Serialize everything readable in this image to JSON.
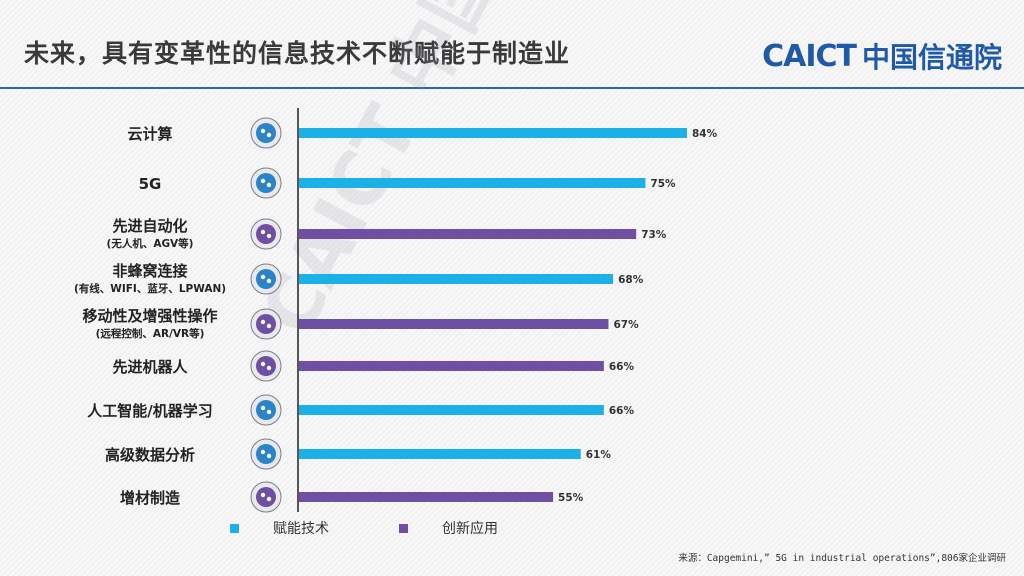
{
  "header": {
    "title": "未来，具有变革性的信息技术不断赋能于制造业",
    "logo_en": "CAICT",
    "logo_cn": "中国信通院"
  },
  "watermark": "CAICT 中国信通院",
  "colors": {
    "enabling": "#1cb1e6",
    "innovation": "#6e4fa3",
    "rule": "#2f66b0",
    "brand": "#1f5aa8"
  },
  "chart_data": {
    "type": "bar",
    "orientation": "horizontal",
    "categories": [
      {
        "label": "云计算",
        "sub": "",
        "icon": "cloud-computing-icon",
        "series": "赋能技术"
      },
      {
        "label": "5G",
        "sub": "",
        "icon": "antenna-5g-icon",
        "series": "赋能技术"
      },
      {
        "label": "先进自动化",
        "sub": "(无人机、AGV等)",
        "icon": "gears-icon",
        "series": "创新应用"
      },
      {
        "label": "非蜂窝连接",
        "sub": "(有线、WIFI、蓝牙、LPWAN)",
        "icon": "network-nodes-icon",
        "series": "赋能技术"
      },
      {
        "label": "移动性及增强性操作",
        "sub": "(远程控制、AR/VR等)",
        "icon": "vr-headset-icon",
        "series": "创新应用"
      },
      {
        "label": "先进机器人",
        "sub": "",
        "icon": "robot-icon",
        "series": "创新应用"
      },
      {
        "label": "人工智能/机器学习",
        "sub": "",
        "icon": "ai-brain-icon",
        "series": "赋能技术"
      },
      {
        "label": "高级数据分析",
        "sub": "",
        "icon": "data-analysis-icon",
        "series": "赋能技术"
      },
      {
        "label": "增材制造",
        "sub": "",
        "icon": "3d-printer-icon",
        "series": "创新应用"
      }
    ],
    "values": [
      84,
      75,
      73,
      68,
      67,
      66,
      66,
      61,
      55
    ],
    "value_labels": [
      "84%",
      "75%",
      "73%",
      "68%",
      "67%",
      "66%",
      "66%",
      "61%",
      "55%"
    ],
    "series": [
      {
        "name": "赋能技术",
        "color": "#1cb1e6"
      },
      {
        "name": "创新应用",
        "color": "#6e4fa3"
      }
    ],
    "xlim": [
      0,
      100
    ]
  },
  "legend": {
    "enabling": "赋能技术",
    "innovation": "创新应用"
  },
  "source": "来源：Capgemini,” 5G in industrial operations”,806家企业调研"
}
